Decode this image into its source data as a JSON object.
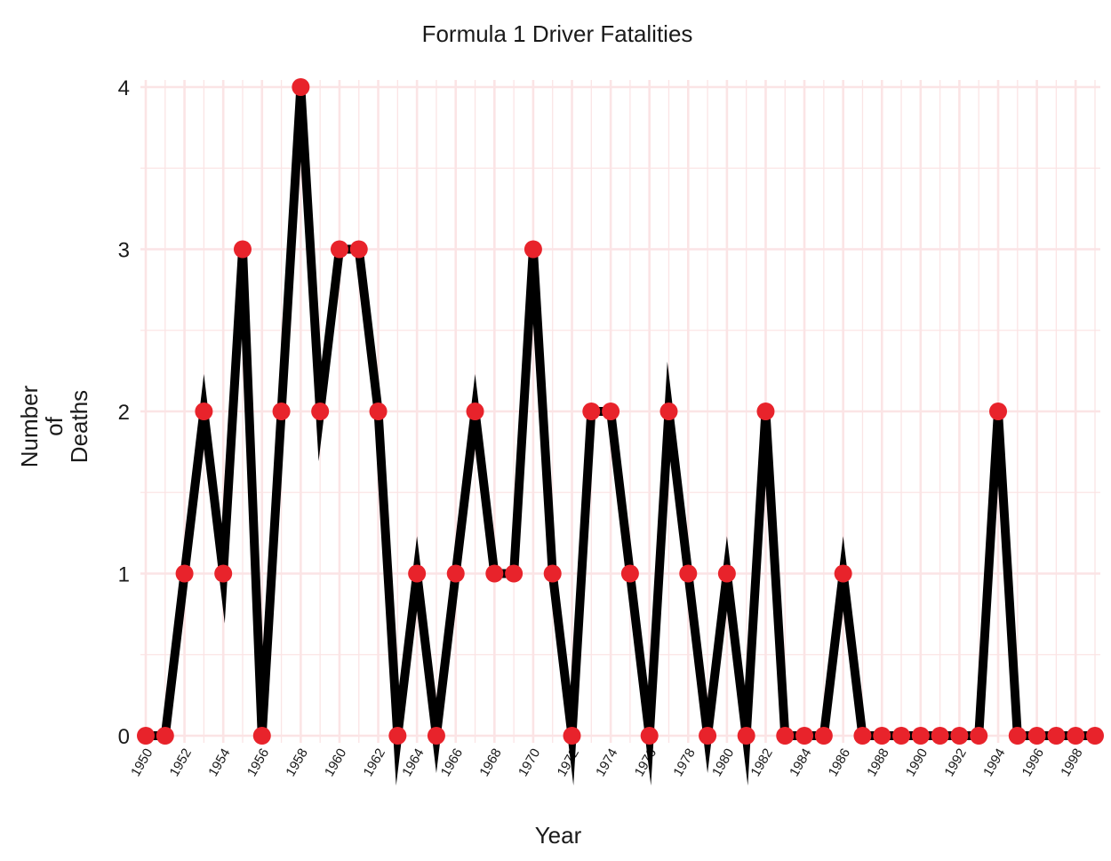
{
  "chart_data": {
    "type": "line",
    "title": "Formula 1 Driver Fatalities",
    "xlabel": "Year",
    "ylabel_lines": [
      "Number",
      "of",
      "Deaths"
    ],
    "x": [
      1950,
      1951,
      1952,
      1953,
      1954,
      1955,
      1956,
      1957,
      1958,
      1959,
      1960,
      1961,
      1962,
      1963,
      1964,
      1965,
      1966,
      1967,
      1968,
      1969,
      1970,
      1971,
      1972,
      1973,
      1974,
      1975,
      1976,
      1977,
      1978,
      1979,
      1980,
      1981,
      1982,
      1983,
      1984,
      1985,
      1986,
      1987,
      1988,
      1989,
      1990,
      1991,
      1992,
      1993,
      1994,
      1995,
      1996,
      1997,
      1998,
      1999
    ],
    "y": [
      0,
      0,
      1,
      2,
      1,
      3,
      0,
      2,
      4,
      2,
      3,
      3,
      2,
      0,
      1,
      0,
      1,
      2,
      1,
      1,
      3,
      1,
      0,
      2,
      2,
      1,
      0,
      2,
      1,
      0,
      1,
      0,
      2,
      0,
      0,
      0,
      1,
      0,
      0,
      0,
      0,
      0,
      0,
      0,
      2,
      0,
      0,
      0,
      0,
      0
    ],
    "x_tick_labels": [
      "1950",
      "1952",
      "1954",
      "1956",
      "1958",
      "1960",
      "1962",
      "1964",
      "1966",
      "1968",
      "1970",
      "1972",
      "1974",
      "1976",
      "1978",
      "1980",
      "1982",
      "1984",
      "1986",
      "1988",
      "1990",
      "1992",
      "1994",
      "1996",
      "1998"
    ],
    "y_tick_labels": [
      "0",
      "1",
      "2",
      "3",
      "4"
    ],
    "xlim": [
      1950,
      1999
    ],
    "ylim": [
      0,
      4
    ],
    "grid": true,
    "line_color": "#000000",
    "marker_color": "#e8232b",
    "grid_color": "#fbe4e5"
  }
}
